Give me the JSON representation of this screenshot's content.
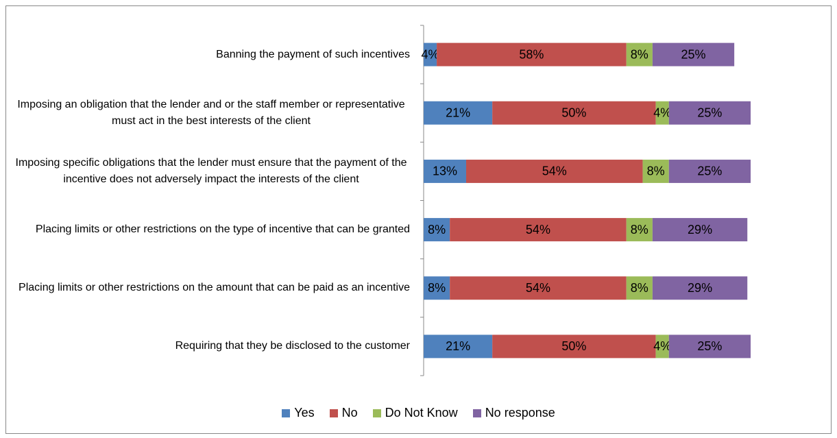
{
  "chart_data": {
    "type": "stacked-bar-horizontal",
    "categories": [
      "Banning the payment of such incentives",
      "Imposing an obligation that the lender and or the staff member or representative must act in the best interests of the client",
      "Imposing specific obligations that the lender must ensure that the payment of the incentive does not adversely impact the interests of the client",
      "Placing limits or other restrictions on the type of incentive that can be granted",
      "Placing limits or other restrictions on the amount that can be paid as an incentive",
      "Requiring that they be disclosed to the customer"
    ],
    "series": [
      {
        "name": "Yes",
        "color": "#4f81bd",
        "values": [
          4,
          21,
          13,
          8,
          8,
          21
        ],
        "value_labels": [
          "4%",
          "21%",
          "13%",
          "8%",
          "8%",
          "21%"
        ]
      },
      {
        "name": "No",
        "color": "#c0504d",
        "values": [
          58,
          50,
          54,
          54,
          54,
          50
        ],
        "value_labels": [
          "58%",
          "50%",
          "54%",
          "54%",
          "54%",
          "50%"
        ]
      },
      {
        "name": "Do Not Know",
        "color": "#9bbb59",
        "values": [
          8,
          4,
          8,
          8,
          8,
          4
        ],
        "value_labels": [
          "8%",
          "4%",
          "8%",
          "8%",
          "8%",
          "4%"
        ]
      },
      {
        "name": "No response",
        "color": "#8064a2",
        "values": [
          25,
          25,
          25,
          29,
          29,
          25
        ],
        "value_labels": [
          "25%",
          "25%",
          "25%",
          "29%",
          "29%",
          "25%"
        ]
      }
    ],
    "xlim": [
      0,
      100
    ],
    "legend": "bottom"
  }
}
